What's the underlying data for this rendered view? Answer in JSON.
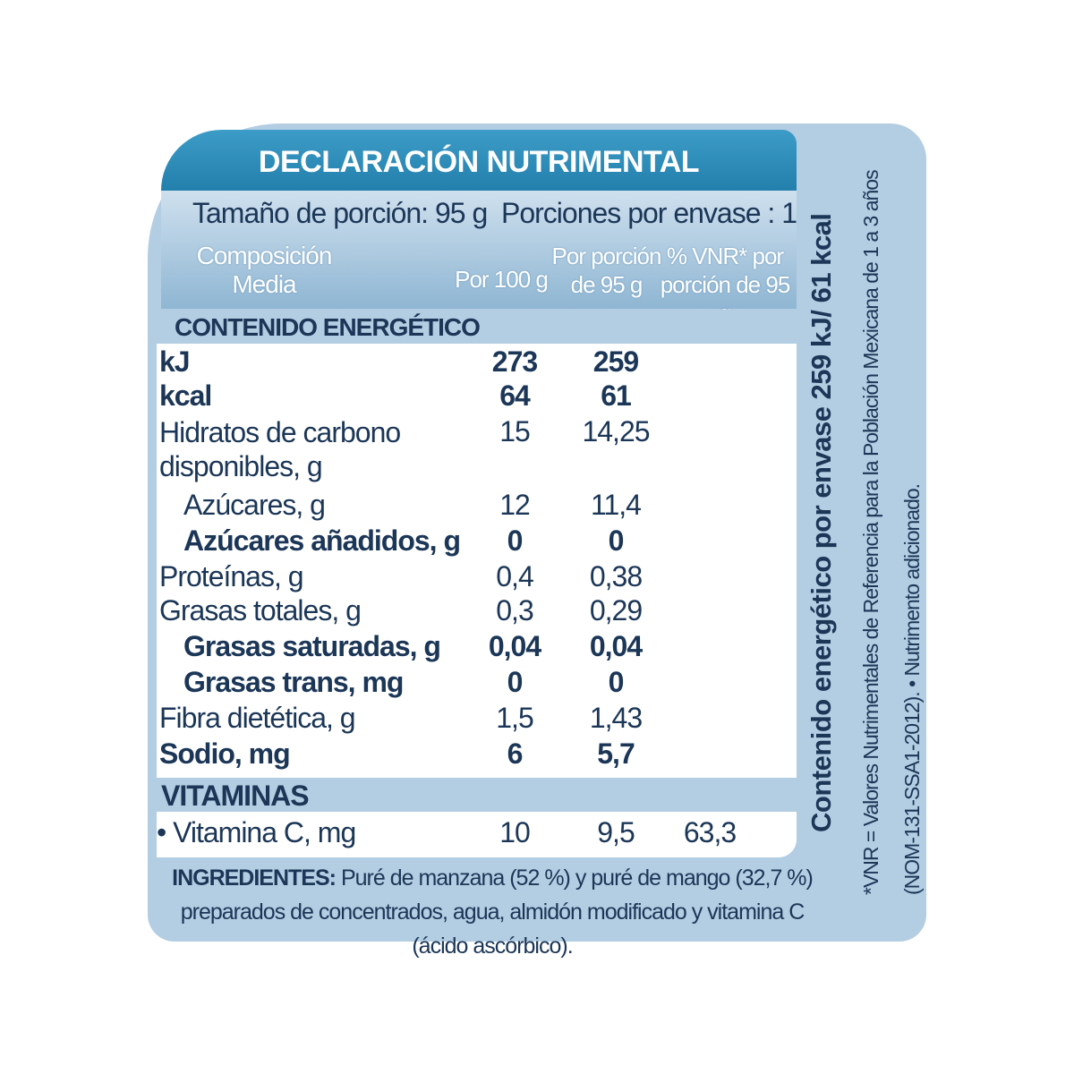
{
  "title": "DECLARACIÓN NUTRIMENTAL",
  "serving": {
    "size": "Tamaño de porción:  95 g",
    "per_package": "Porciones por envase : 1"
  },
  "columns": [
    "Composición Media",
    "Por 100 g",
    "Por porción de 95 g",
    "% VNR* por porción de 95 g"
  ],
  "energy_section": "CONTENIDO ENERGÉTICO",
  "rows": [
    [
      "kJ",
      "273",
      "259"
    ],
    [
      "kcal",
      "64",
      "61"
    ],
    [
      "Hidratos de carbono disponibles, g",
      "15",
      "14,25"
    ],
    [
      "Azúcares, g",
      "12",
      "11,4"
    ],
    [
      "Azúcares añadidos, g",
      "0",
      "0"
    ],
    [
      "Proteínas, g",
      "0,4",
      "0,38"
    ],
    [
      "Grasas totales, g",
      "0,3",
      "0,29"
    ],
    [
      "Grasas saturadas, g",
      "0,04",
      "0,04"
    ],
    [
      "Grasas trans, mg",
      "0",
      "0"
    ],
    [
      "Fibra dietética, g",
      "1,5",
      "1,43"
    ],
    [
      "Sodio, mg",
      "6",
      "5,7"
    ]
  ],
  "vitamins_section": "VITAMINAS",
  "vitamin_rows": [
    [
      "• Vitamina C, mg",
      "10",
      "9,5",
      "63,3"
    ]
  ],
  "ingredients": {
    "label": "INGREDIENTES:",
    "text": "Puré de manzana (52 %) y puré de mango (32,7 %) preparados de concentrados, agua, almidón modificado y vitamina C (ácido ascórbico)."
  },
  "side_energy": "Contenido energético por envase  259 kJ/ 61 kcal",
  "footnote": "*VNR = Valores Nutrimentales de Referencia para la Población Mexicana de 1 a 3 años (NOM-131-SSA1-2012). • Nutrimento adicionado."
}
